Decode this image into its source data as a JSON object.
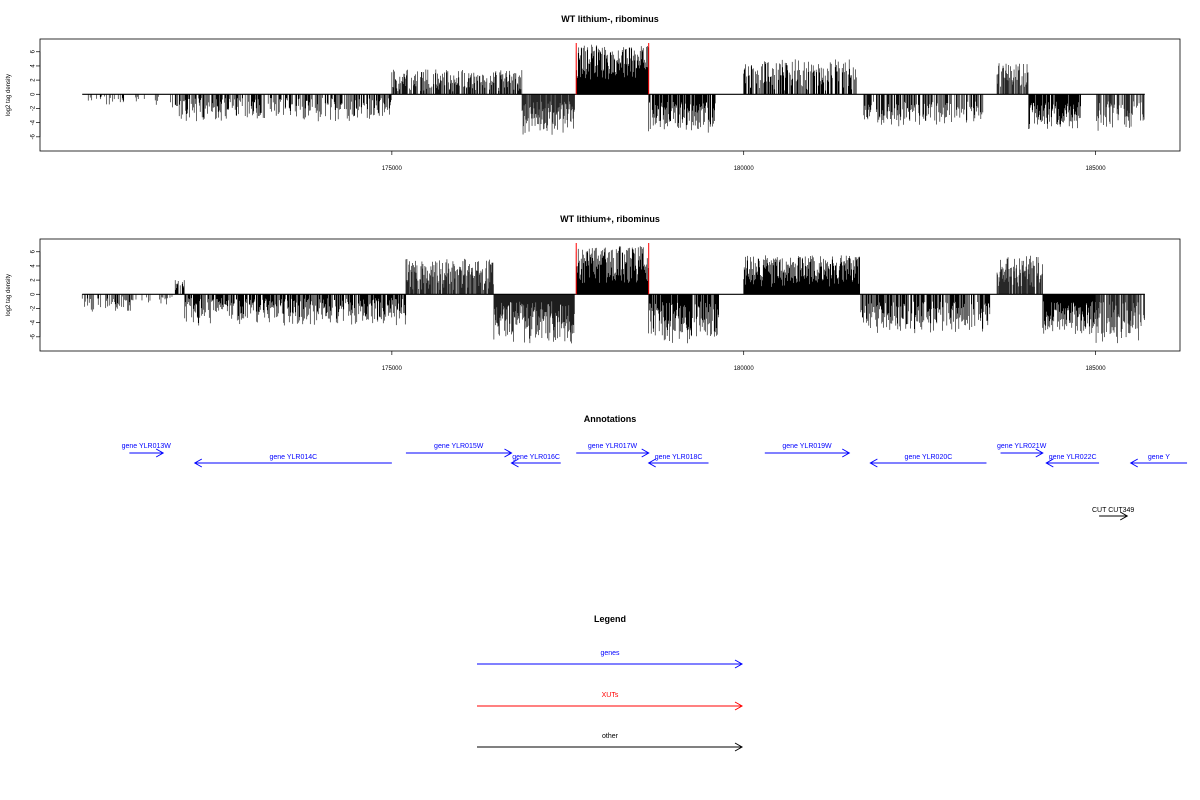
{
  "colors": {
    "genes": "#0000ff",
    "xuts": "#ff0000",
    "other": "#000000",
    "bars": "#000000"
  },
  "chart_data": [
    {
      "type": "bar",
      "title": "WT lithium-, ribominus",
      "ylabel": "log2 tag density",
      "xlim": [
        170000,
        186200
      ],
      "ylim": [
        -8,
        7.8
      ],
      "yticks": [
        -6,
        -4,
        -2,
        0,
        2,
        4,
        6
      ],
      "xticks": [
        175000,
        180000,
        185000
      ],
      "xticklabels": [
        "175000",
        "180000",
        "185000"
      ],
      "highlight_lines_x": [
        177620,
        178650
      ],
      "data_range": [
        170600,
        185700
      ],
      "regions": [
        {
          "from": 170600,
          "to": 171700,
          "min": -1.5,
          "max": -0.3,
          "density": 0.15
        },
        {
          "from": 171850,
          "to": 175000,
          "min": -3.8,
          "max": -0.5,
          "density": 0.55
        },
        {
          "from": 175000,
          "to": 176850,
          "min": 0.4,
          "max": 3.5,
          "density": 0.6
        },
        {
          "from": 176850,
          "to": 177600,
          "min": -5.8,
          "max": -1.0,
          "density": 0.9
        },
        {
          "from": 177620,
          "to": 178650,
          "min": 2.0,
          "max": 7.0,
          "density": 1.0
        },
        {
          "from": 178650,
          "to": 179600,
          "min": -5.6,
          "max": -1.0,
          "density": 0.8
        },
        {
          "from": 180000,
          "to": 181600,
          "min": 0.5,
          "max": 5.0,
          "density": 0.6
        },
        {
          "from": 181700,
          "to": 183400,
          "min": -4.5,
          "max": -1.0,
          "density": 0.6
        },
        {
          "from": 183600,
          "to": 184050,
          "min": 1.0,
          "max": 4.5,
          "density": 0.6
        },
        {
          "from": 184050,
          "to": 184800,
          "min": -5.0,
          "max": -1.0,
          "density": 0.9
        },
        {
          "from": 185000,
          "to": 185700,
          "min": -5.2,
          "max": -1.0,
          "density": 0.6
        }
      ]
    },
    {
      "type": "bar",
      "title": "WT lithium+, ribominus",
      "ylabel": "log2 tag density",
      "xlim": [
        170000,
        186200
      ],
      "ylim": [
        -8,
        7.8
      ],
      "yticks": [
        -6,
        -4,
        -2,
        0,
        2,
        4,
        6
      ],
      "xticks": [
        175000,
        180000,
        185000
      ],
      "xticklabels": [
        "175000",
        "180000",
        "185000"
      ],
      "highlight_lines_x": [
        177620,
        178650
      ],
      "data_range": [
        170600,
        185700
      ],
      "regions": [
        {
          "from": 170600,
          "to": 171300,
          "min": -2.5,
          "max": -0.3,
          "density": 0.4
        },
        {
          "from": 171300,
          "to": 171900,
          "min": -1.5,
          "max": -0.3,
          "density": 0.25
        },
        {
          "from": 171900,
          "to": 172050,
          "min": 0.5,
          "max": 2.2,
          "density": 0.7
        },
        {
          "from": 172050,
          "to": 175200,
          "min": -4.5,
          "max": -0.5,
          "density": 0.75
        },
        {
          "from": 175200,
          "to": 176450,
          "min": 0.5,
          "max": 5.0,
          "density": 0.8
        },
        {
          "from": 176450,
          "to": 177600,
          "min": -7.0,
          "max": -1.0,
          "density": 1.0
        },
        {
          "from": 177620,
          "to": 178650,
          "min": 1.5,
          "max": 6.8,
          "density": 1.0
        },
        {
          "from": 178650,
          "to": 179650,
          "min": -7.0,
          "max": -1.0,
          "density": 0.85
        },
        {
          "from": 180000,
          "to": 181650,
          "min": 1.0,
          "max": 5.5,
          "density": 1.0
        },
        {
          "from": 181650,
          "to": 183500,
          "min": -5.5,
          "max": -1.0,
          "density": 0.7
        },
        {
          "from": 183600,
          "to": 184250,
          "min": 1.0,
          "max": 5.5,
          "density": 0.9
        },
        {
          "from": 184250,
          "to": 185000,
          "min": -6.0,
          "max": -1.0,
          "density": 1.0
        },
        {
          "from": 185000,
          "to": 185700,
          "min": -7.0,
          "max": -1.0,
          "density": 0.8
        }
      ]
    }
  ],
  "annotations": {
    "title": "Annotations",
    "items": [
      {
        "label": "gene YLR013W",
        "from": 171270,
        "to": 171750,
        "dir": "right",
        "row": 0,
        "type": "genes"
      },
      {
        "label": "gene YLR014C",
        "from": 172200,
        "to": 175000,
        "dir": "left",
        "row": 1,
        "type": "genes"
      },
      {
        "label": "gene YLR015W",
        "from": 175200,
        "to": 176700,
        "dir": "right",
        "row": 0,
        "type": "genes"
      },
      {
        "label": "gene YLR016C",
        "from": 176700,
        "to": 177400,
        "dir": "left",
        "row": 1,
        "type": "genes"
      },
      {
        "label": "gene YLR017W",
        "from": 177620,
        "to": 178650,
        "dir": "right",
        "row": 0,
        "type": "genes"
      },
      {
        "label": "gene YLR018C",
        "from": 178650,
        "to": 179500,
        "dir": "left",
        "row": 1,
        "type": "genes"
      },
      {
        "label": "gene YLR019W",
        "from": 180300,
        "to": 181500,
        "dir": "right",
        "row": 0,
        "type": "genes"
      },
      {
        "label": "gene YLR020C",
        "from": 181800,
        "to": 183450,
        "dir": "left",
        "row": 1,
        "type": "genes"
      },
      {
        "label": "gene YLR021W",
        "from": 183650,
        "to": 184250,
        "dir": "right",
        "row": 0,
        "type": "genes"
      },
      {
        "label": "gene YLR022C",
        "from": 184300,
        "to": 185050,
        "dir": "left",
        "row": 1,
        "type": "genes"
      },
      {
        "label": "gene Y",
        "from": 185500,
        "to": 186300,
        "dir": "left",
        "row": 1,
        "type": "genes"
      },
      {
        "label": "CUT CUT349",
        "from": 185050,
        "to": 185450,
        "dir": "right",
        "row": 2,
        "type": "other"
      }
    ]
  },
  "legend": {
    "title": "Legend",
    "items": [
      {
        "label": "genes",
        "type": "genes"
      },
      {
        "label": "XUTs",
        "type": "xuts"
      },
      {
        "label": "other",
        "type": "other"
      }
    ]
  }
}
